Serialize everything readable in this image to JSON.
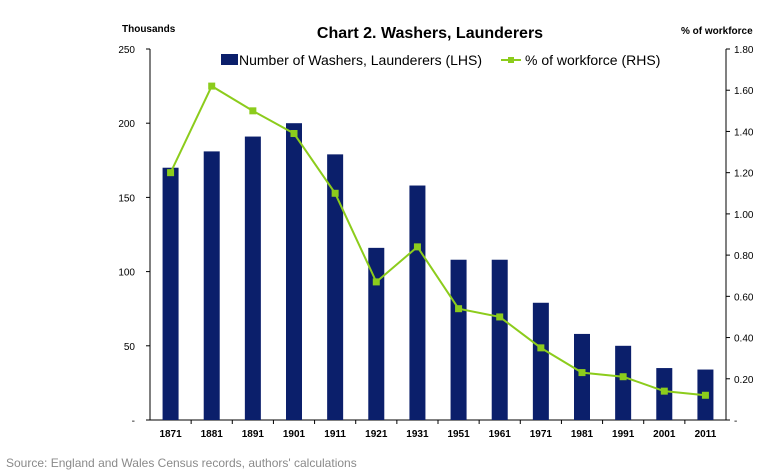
{
  "chart_data": {
    "type": "bar+line",
    "title": "Chart 2. Washers, Launderers",
    "left_axis_label": "Thousands",
    "right_axis_label": "% of workforce",
    "categories": [
      "1871",
      "1881",
      "1891",
      "1901",
      "1911",
      "1921",
      "1931",
      "1951",
      "1961",
      "1971",
      "1981",
      "1991",
      "2001",
      "2011"
    ],
    "series": [
      {
        "name": "Number of Washers, Launderers (LHS)",
        "type": "bar",
        "axis": "left",
        "color": "#0b1f6b",
        "values": [
          170,
          181,
          191,
          200,
          179,
          116,
          158,
          108,
          108,
          79,
          58,
          50,
          35,
          34
        ]
      },
      {
        "name": "% of workforce (RHS)",
        "type": "line",
        "axis": "right",
        "color": "#8ccc1c",
        "values": [
          1.2,
          1.62,
          1.5,
          1.39,
          1.1,
          0.67,
          0.84,
          0.54,
          0.5,
          0.35,
          0.23,
          0.21,
          0.14,
          0.12
        ]
      }
    ],
    "left_axis": {
      "min": 0,
      "max": 250,
      "ticks": [
        0,
        50,
        100,
        150,
        200,
        250
      ],
      "tick_labels": [
        "-",
        "50",
        "100",
        "150",
        "200",
        "250"
      ]
    },
    "right_axis": {
      "min": 0,
      "max": 1.8,
      "ticks": [
        0,
        0.2,
        0.4,
        0.6,
        0.8,
        1.0,
        1.2,
        1.4,
        1.6,
        1.8
      ],
      "tick_labels": [
        "-",
        "0.20",
        "0.40",
        "0.60",
        "0.80",
        "1.00",
        "1.20",
        "1.40",
        "1.60",
        "1.80"
      ]
    },
    "legend_position": "top-center",
    "grid": false
  },
  "source_text": "Source: England and Wales Census records, authors' calculations"
}
